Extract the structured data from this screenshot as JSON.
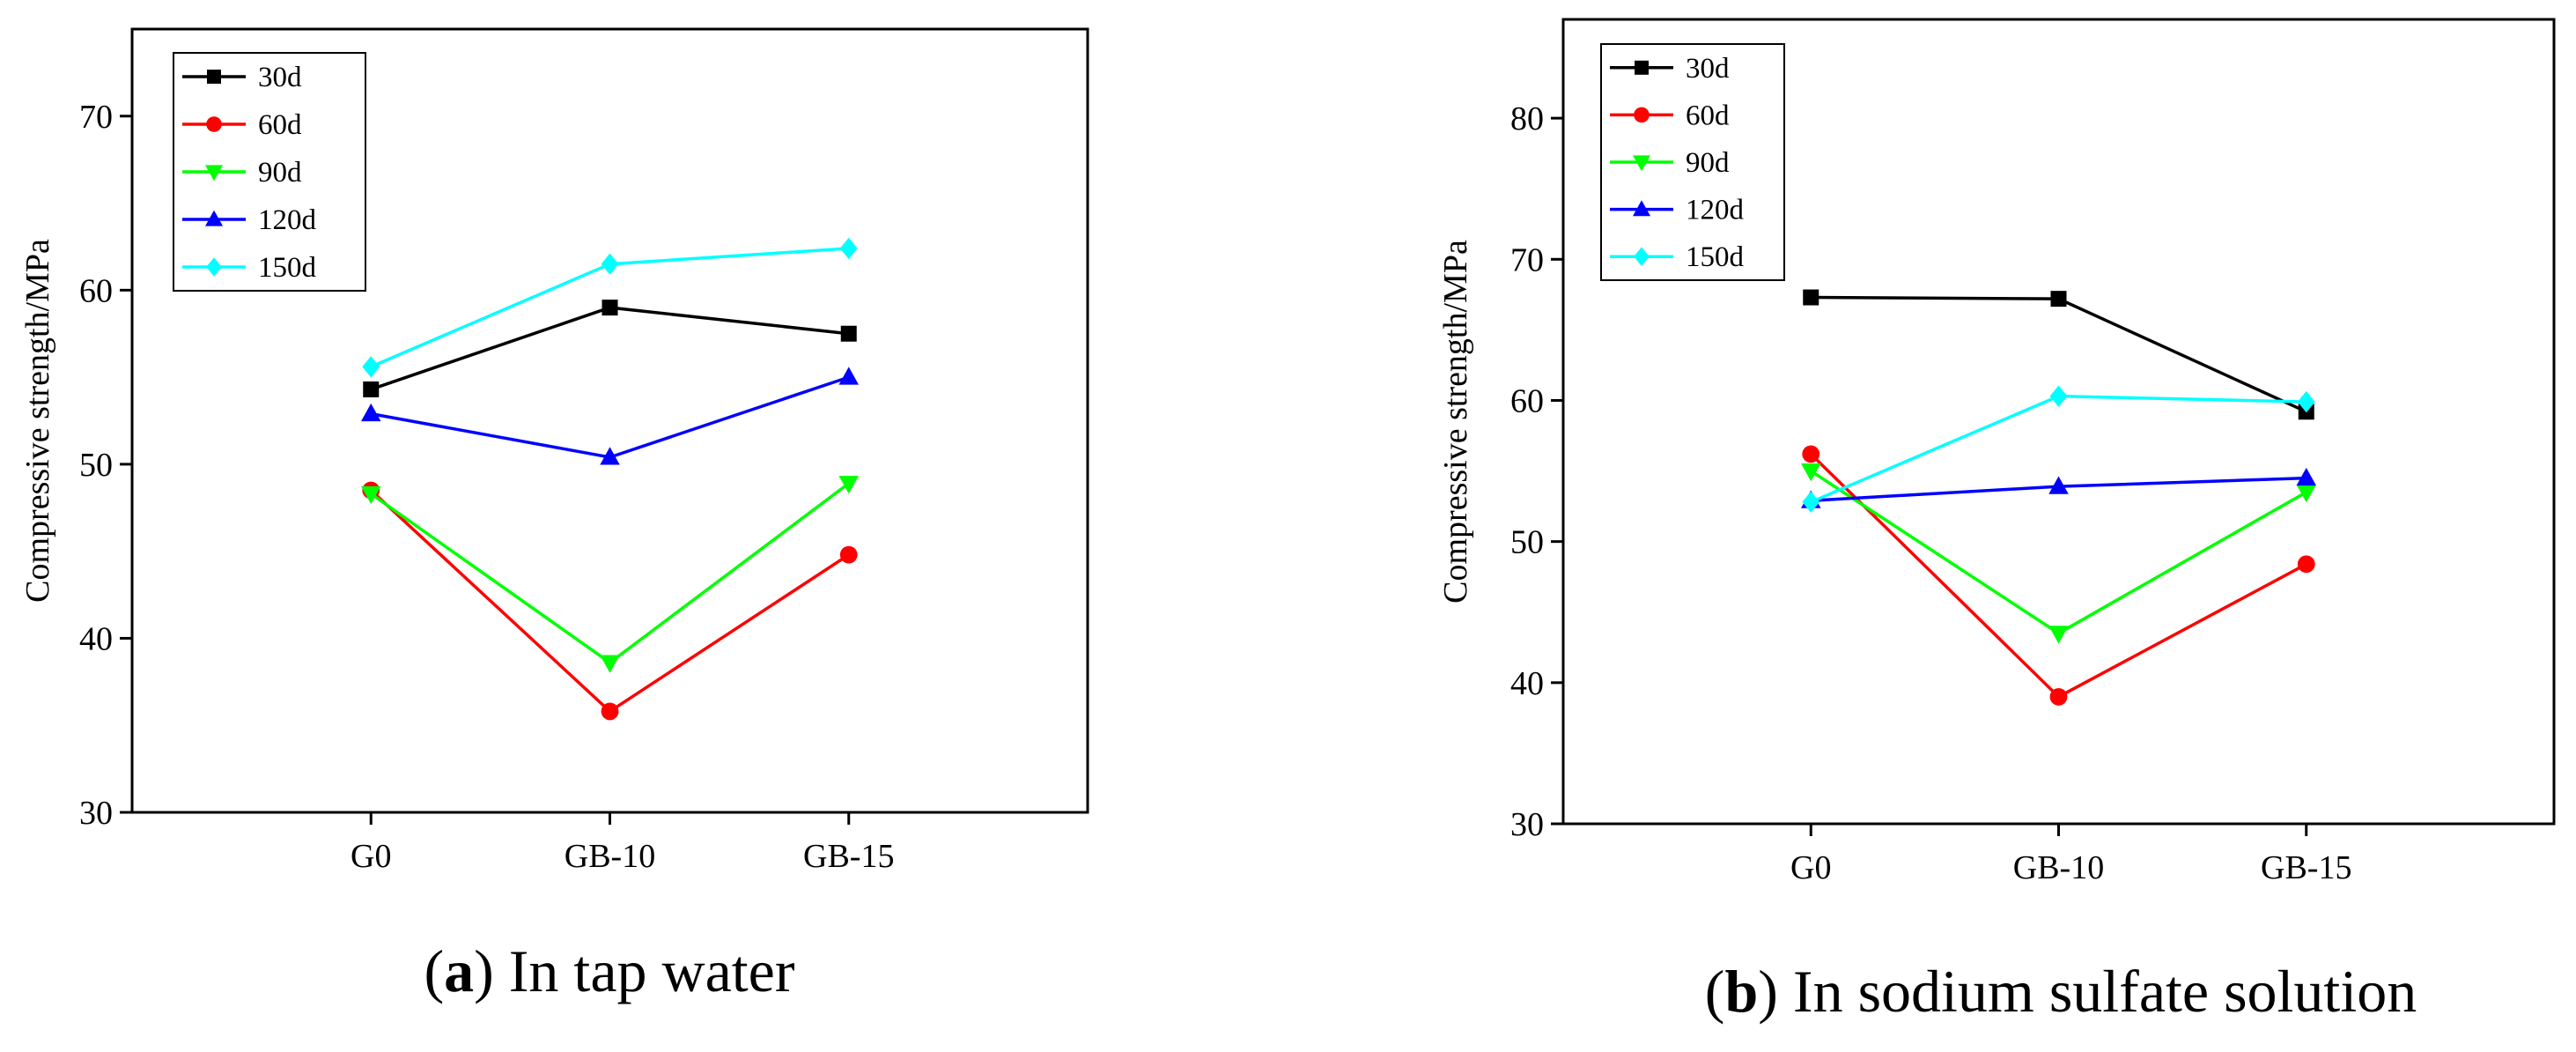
{
  "chart_data": [
    {
      "type": "line",
      "title": "",
      "caption_letter": "a",
      "caption_text": "In tap water",
      "xlabel": "",
      "ylabel": "Compressive strength/MPa",
      "categories": [
        "G0",
        "GB-10",
        "GB-15"
      ],
      "ylim": [
        30,
        75
      ],
      "yticks": [
        30,
        40,
        50,
        60,
        70
      ],
      "grid": false,
      "legend_position": "top-left",
      "series": [
        {
          "name": "30d",
          "color": "#000000",
          "marker": "square",
          "values": [
            54.3,
            59.0,
            57.5
          ]
        },
        {
          "name": "60d",
          "color": "#ff0000",
          "marker": "circle",
          "values": [
            48.5,
            35.8,
            44.8
          ]
        },
        {
          "name": "90d",
          "color": "#00ff00",
          "marker": "triangle-down",
          "values": [
            48.3,
            38.6,
            48.9
          ]
        },
        {
          "name": "120d",
          "color": "#0000ff",
          "marker": "triangle-up",
          "values": [
            52.9,
            50.4,
            55.0
          ]
        },
        {
          "name": "150d",
          "color": "#00ffff",
          "marker": "diamond",
          "values": [
            55.6,
            61.5,
            62.4
          ]
        }
      ]
    },
    {
      "type": "line",
      "title": "",
      "caption_letter": "b",
      "caption_text": "In sodium sulfate solution",
      "xlabel": "",
      "ylabel": "Compressive strength/MPa",
      "categories": [
        "G0",
        "GB-10",
        "GB-15"
      ],
      "ylim": [
        30,
        87
      ],
      "yticks": [
        30,
        40,
        50,
        60,
        70,
        80
      ],
      "grid": false,
      "legend_position": "top-left",
      "series": [
        {
          "name": "30d",
          "color": "#000000",
          "marker": "square",
          "values": [
            67.3,
            67.2,
            59.2
          ]
        },
        {
          "name": "60d",
          "color": "#ff0000",
          "marker": "circle",
          "values": [
            56.2,
            39.0,
            48.4
          ]
        },
        {
          "name": "90d",
          "color": "#00ff00",
          "marker": "triangle-down",
          "values": [
            55.0,
            43.5,
            53.5
          ]
        },
        {
          "name": "120d",
          "color": "#0000ff",
          "marker": "triangle-up",
          "values": [
            52.9,
            53.9,
            54.5
          ]
        },
        {
          "name": "150d",
          "color": "#00ffff",
          "marker": "diamond",
          "values": [
            52.8,
            60.3,
            59.9
          ]
        }
      ]
    }
  ]
}
